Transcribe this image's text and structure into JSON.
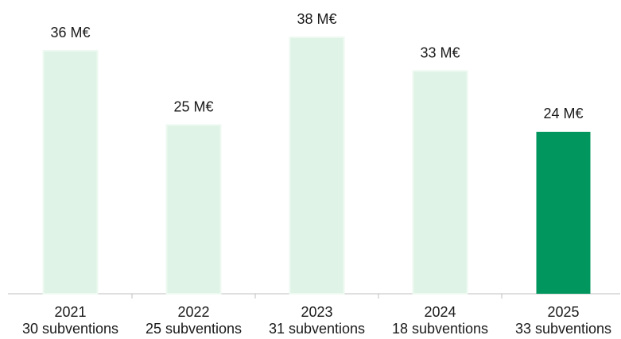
{
  "chart_data": {
    "type": "bar",
    "categories": [
      "2021",
      "2022",
      "2023",
      "2024",
      "2025"
    ],
    "category_sublabels": [
      "30 subventions",
      "25 subventions",
      "31 subventions",
      "18 subventions",
      "33 subventions"
    ],
    "values": [
      36,
      25,
      38,
      33,
      24
    ],
    "value_labels": [
      "36 M€",
      "25 M€",
      "38 M€",
      "33 M€",
      "24 M€"
    ],
    "colors": [
      "#dff3e6",
      "#dff3e6",
      "#dff3e6",
      "#dff3e6",
      "#00965e"
    ]
  }
}
